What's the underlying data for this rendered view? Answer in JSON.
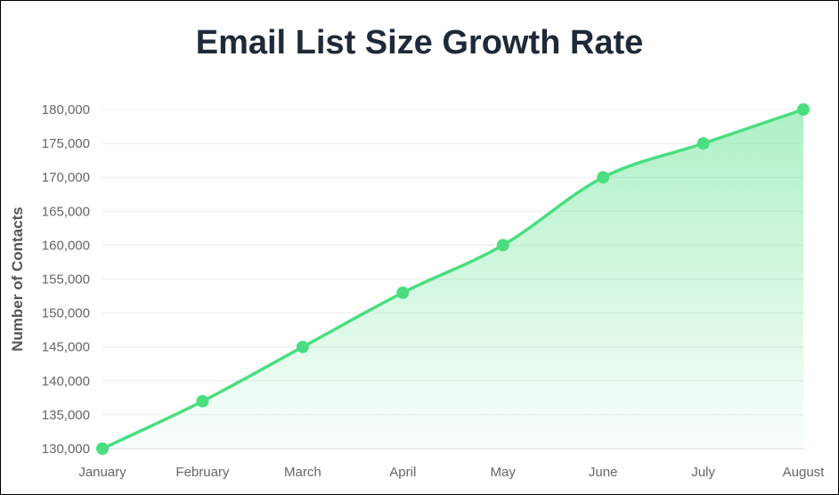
{
  "chart_data": {
    "type": "line",
    "title": "Email List Size Growth Rate",
    "xlabel": "",
    "ylabel": "Number of Contacts",
    "categories": [
      "January",
      "February",
      "March",
      "April",
      "May",
      "June",
      "July",
      "August"
    ],
    "series": [
      {
        "values": [
          130000,
          137000,
          145000,
          153000,
          160000,
          170000,
          175000,
          180000
        ],
        "color": "#4ade80",
        "fill": "area-gradient"
      }
    ],
    "ylim": [
      130000,
      180000
    ],
    "yticks": [
      "130,000",
      "135,000",
      "140,000",
      "145,000",
      "150,000",
      "155,000",
      "160,000",
      "165,000",
      "170,000",
      "175,000",
      "180,000"
    ],
    "grid": true,
    "legend": "none"
  }
}
